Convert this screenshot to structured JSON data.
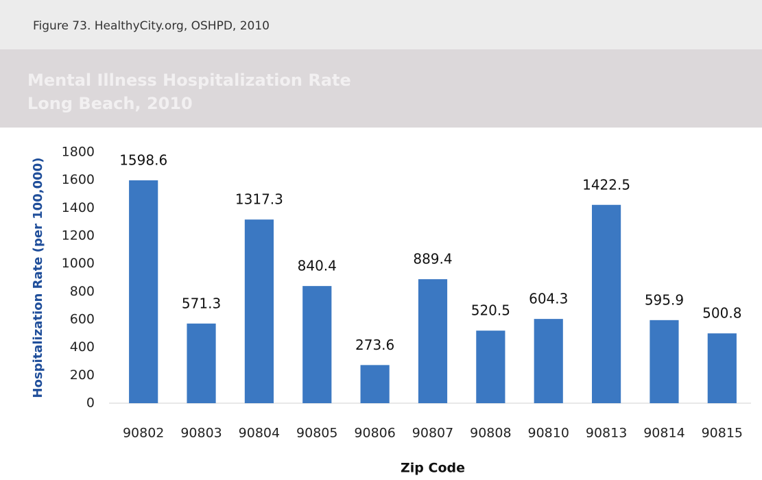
{
  "chart_data": {
    "type": "bar",
    "caption": "Figure 73. HealthyCity.org, OSHPD, 2010",
    "title": "Mental Illness Hospitalization Rate",
    "subtitle": "Long Beach, 2010",
    "x_label": "Zip Code",
    "y_label": "Hospitalization Rate (per 100,000)",
    "categories": [
      "90802",
      "90803",
      "90804",
      "90805",
      "90806",
      "90807",
      "90808",
      "90810",
      "90813",
      "90814",
      "90815"
    ],
    "values": [
      1598.6,
      571.3,
      1317.3,
      840.4,
      273.6,
      889.4,
      520.5,
      604.3,
      1422.5,
      595.9,
      500.8
    ],
    "color": "#3b78c2",
    "ylim": [
      0,
      1800
    ],
    "yticks": [
      0,
      200,
      400,
      600,
      800,
      1000,
      1200,
      1400,
      1600,
      1800
    ],
    "grid": false
  }
}
